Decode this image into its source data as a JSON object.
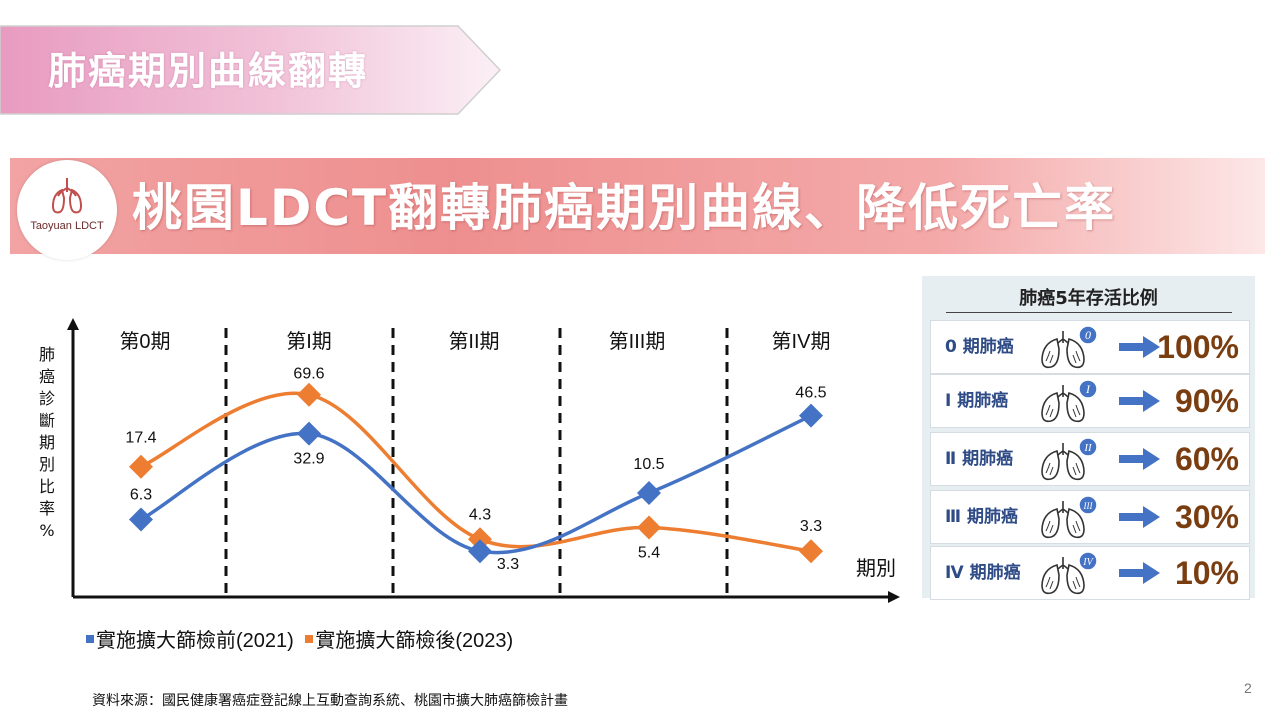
{
  "header": {
    "ribbon_title": "肺癌期別曲線翻轉"
  },
  "banner": {
    "logo_text": "Taoyuan LDCT",
    "title": "桃園LDCT翻轉肺癌期別曲線、降低死亡率"
  },
  "chart_data": {
    "type": "line",
    "categories": [
      "第0期",
      "第I期",
      "第II期",
      "第III期",
      "第IV期"
    ],
    "series": [
      {
        "name": "實施擴大篩檢前(2021)",
        "color": "#4472c4",
        "values": [
          6.3,
          32.9,
          3.3,
          10.5,
          46.5
        ],
        "labels": [
          "6.3",
          "32.9",
          "3.3",
          "10.5",
          "46.5"
        ]
      },
      {
        "name": "實施擴大篩檢後(2023)",
        "color": "#ed7d31",
        "values": [
          17.4,
          69.6,
          4.3,
          5.4,
          3.3
        ],
        "labels": [
          "17.4",
          "69.6",
          "4.3",
          "5.4",
          "3.3"
        ]
      }
    ],
    "ylabel": "肺癌診斷期別比率%",
    "xlabel": "期別",
    "grid": false,
    "legend": "bottom",
    "dividers": "dashed vertical lines between stages"
  },
  "survival": {
    "title": "肺癌5年存活比例",
    "rows": [
      {
        "label": "0 期肺癌",
        "badge": "0",
        "value": "100%"
      },
      {
        "label": "Ⅰ 期肺癌",
        "badge": "I",
        "value": "90%"
      },
      {
        "label": "Ⅱ 期肺癌",
        "badge": "II",
        "value": "60%"
      },
      {
        "label": "Ⅲ 期肺癌",
        "badge": "III",
        "value": "30%"
      },
      {
        "label": "Ⅳ 期肺癌",
        "badge": "IV",
        "value": "10%"
      }
    ]
  },
  "footer": {
    "source": "資料來源：國民健康署癌症登記線上互動查詢系統、桃園市擴大肺癌篩檢計畫",
    "page_number": "2"
  },
  "colors": {
    "series_before": "#4472c4",
    "series_after": "#ed7d31",
    "banner": "#ee8f8f",
    "survival_value": "#7a3d10",
    "stage_label": "#2f4c86"
  }
}
